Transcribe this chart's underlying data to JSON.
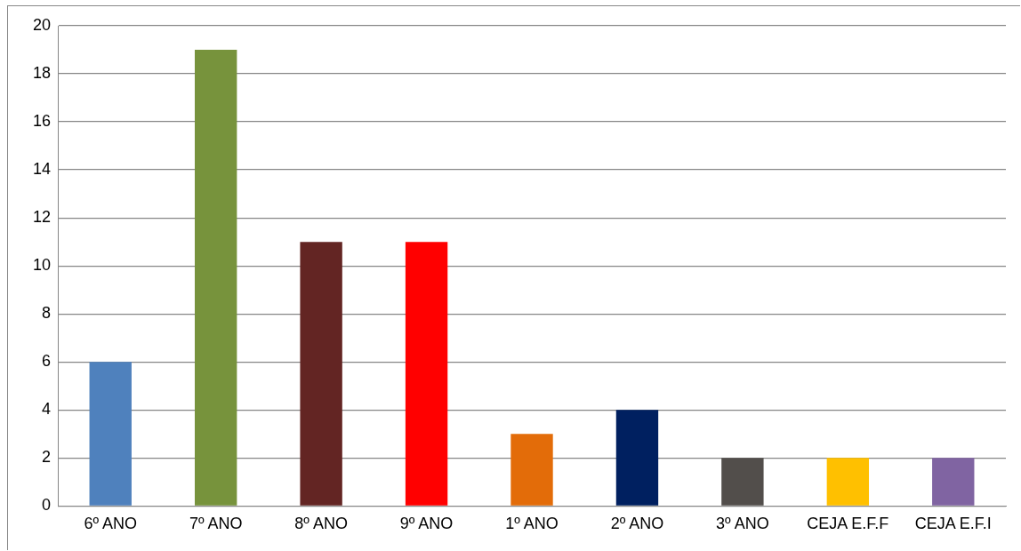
{
  "chart_data": {
    "type": "bar",
    "categories": [
      "6º ANO",
      "7º ANO",
      "8º ANO",
      "9º ANO",
      "1º ANO",
      "2º ANO",
      "3º ANO",
      "CEJA E.F.F",
      "CEJA E.F.I"
    ],
    "values": [
      6,
      19,
      11,
      11,
      3,
      4,
      2,
      2,
      2
    ],
    "colors": [
      "#4f81bd",
      "#77933c",
      "#632523",
      "#ff0000",
      "#e36c09",
      "#002060",
      "#524e4b",
      "#ffc000",
      "#8064a2"
    ],
    "ylim": [
      0,
      20
    ],
    "yticks": [
      0,
      2,
      4,
      6,
      8,
      10,
      12,
      14,
      16,
      18,
      20
    ],
    "grid": "y",
    "legend": false
  }
}
